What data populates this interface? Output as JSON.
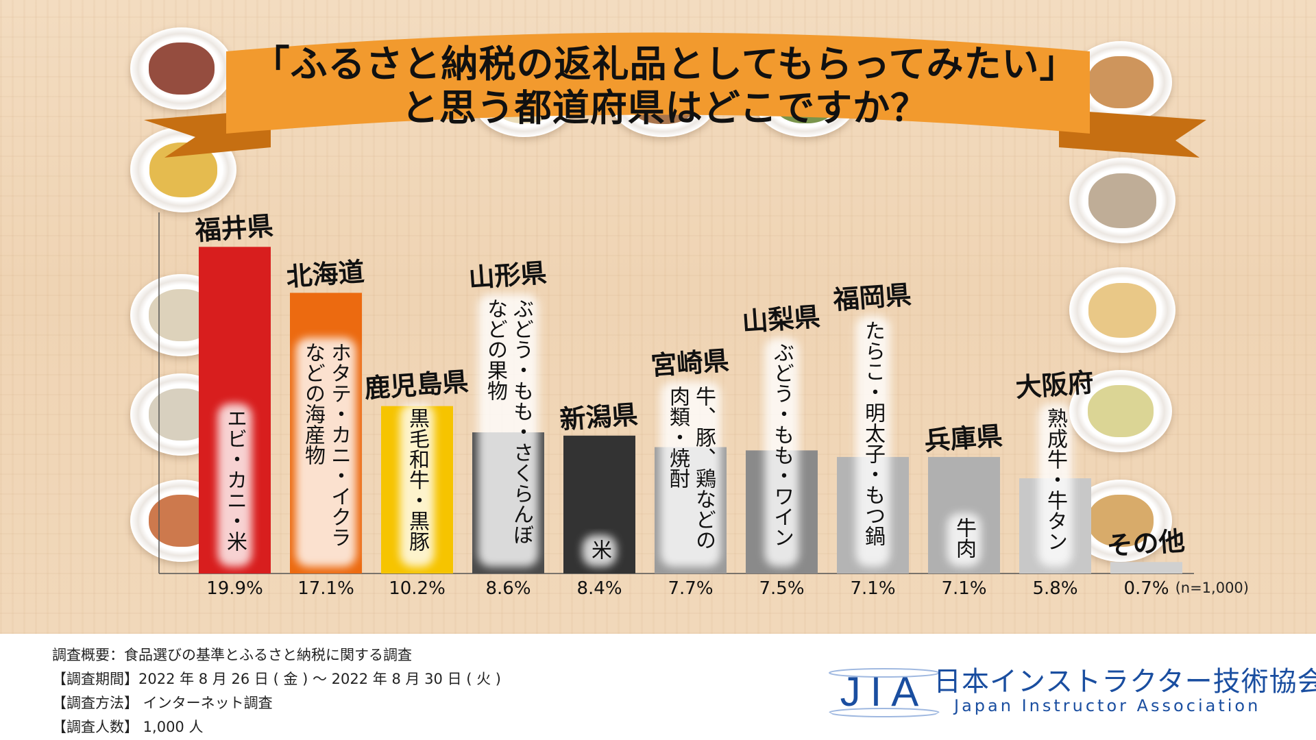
{
  "title_lines": [
    "「ふるさと納税の返礼品としてもらってみたい」",
    "と思う都道府県はどこですか？"
  ],
  "sample_note": "(n=1,000)",
  "chart_data": {
    "type": "bar",
    "title": "「ふるさと納税の返礼品としてもらってみたい」と思う都道府県はどこですか？",
    "categories": [
      "福井県",
      "北海道",
      "鹿児島県",
      "山形県",
      "新潟県",
      "宮崎県",
      "山梨県",
      "福岡県",
      "兵庫県",
      "大阪府",
      "その他"
    ],
    "values": [
      19.9,
      17.1,
      10.2,
      8.6,
      8.4,
      7.7,
      7.5,
      7.1,
      7.1,
      5.8,
      0.7
    ],
    "value_labels": [
      "19.9%",
      "17.1%",
      "10.2%",
      "8.6%",
      "8.4%",
      "7.7%",
      "7.5%",
      "7.1%",
      "7.1%",
      "5.8%",
      "0.7%"
    ],
    "products": [
      [
        "エビ・カニ・米"
      ],
      [
        "ホタテ・カニ・イクラ",
        "などの海産物"
      ],
      [
        "黒毛和牛・黒豚"
      ],
      [
        "ぶどう・もも・さくらんぼ",
        "などの果物"
      ],
      [
        "米"
      ],
      [
        "牛、豚、鶏などの",
        "肉類・焼酎"
      ],
      [
        "ぶどう・もも・ワイン"
      ],
      [
        "たらこ・明太子・もつ鍋"
      ],
      [
        "牛肉"
      ],
      [
        "熟成牛・牛タン"
      ],
      []
    ],
    "colors": [
      "#d81e1e",
      "#ec6a10",
      "#f6c400",
      "#4a4a4a",
      "#333333",
      "#9a9a9a",
      "#8a8a8a",
      "#b4b4b4",
      "#b0b0b0",
      "#c8c8c8",
      "#d0d0d0"
    ],
    "xlabel": "",
    "ylabel": "",
    "ylim": [
      0,
      22
    ],
    "grid": false,
    "legend": "none"
  },
  "survey": {
    "overview": "調査概要：食品選びの基準とふるさと納税に関する調査",
    "period": "【調査期間】2022 年 8 月 26 日 ( 金 ) ～ 2022 年 8 月 30 日 ( 火 )",
    "method": "【調査方法】 インターネット調査",
    "respondents": "【調査人数】 1,000 人"
  },
  "logo": {
    "mark": "JIA",
    "name": "日本インストラクター技術協会",
    "subtitle": "Japan Instructor Association",
    "color": "#1a4ea0"
  },
  "accent": {
    "ribbon": "#f29a2e",
    "ribbon_dark": "#c66f12"
  }
}
